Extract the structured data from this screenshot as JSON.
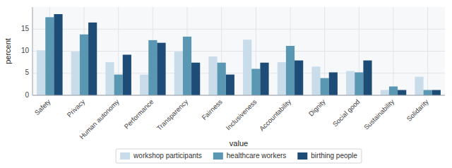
{
  "chart_data": {
    "type": "bar",
    "categories": [
      "Safety",
      "Privacy",
      "Human autonomy",
      "Performance",
      "Transparency",
      "Fairness",
      "Inclusiveness",
      "Accountability",
      "Dignity",
      "Social good",
      "Sustainability",
      "Solidarity"
    ],
    "series": [
      {
        "name": "workshop participants",
        "color": "#c8dcea",
        "values": [
          10.2,
          9.9,
          7.5,
          4.7,
          9.9,
          8.8,
          12.6,
          7.5,
          6.5,
          5.5,
          1.2,
          4.2
        ]
      },
      {
        "name": "healthcare workers",
        "color": "#5a97b3",
        "values": [
          17.7,
          13.8,
          4.7,
          12.5,
          13.3,
          7.4,
          6.0,
          11.2,
          3.9,
          5.2,
          2.0,
          1.2
        ]
      },
      {
        "name": "birthing people",
        "color": "#1d4d77",
        "values": [
          18.4,
          16.5,
          9.2,
          11.9,
          7.4,
          4.7,
          7.4,
          7.9,
          5.2,
          7.9,
          1.2,
          1.2
        ]
      }
    ],
    "xlabel": "value",
    "ylabel": "percent",
    "ylim": [
      0,
      20
    ],
    "yticks": [
      0,
      5,
      10,
      15
    ],
    "grid": true,
    "legend": "bottom"
  }
}
